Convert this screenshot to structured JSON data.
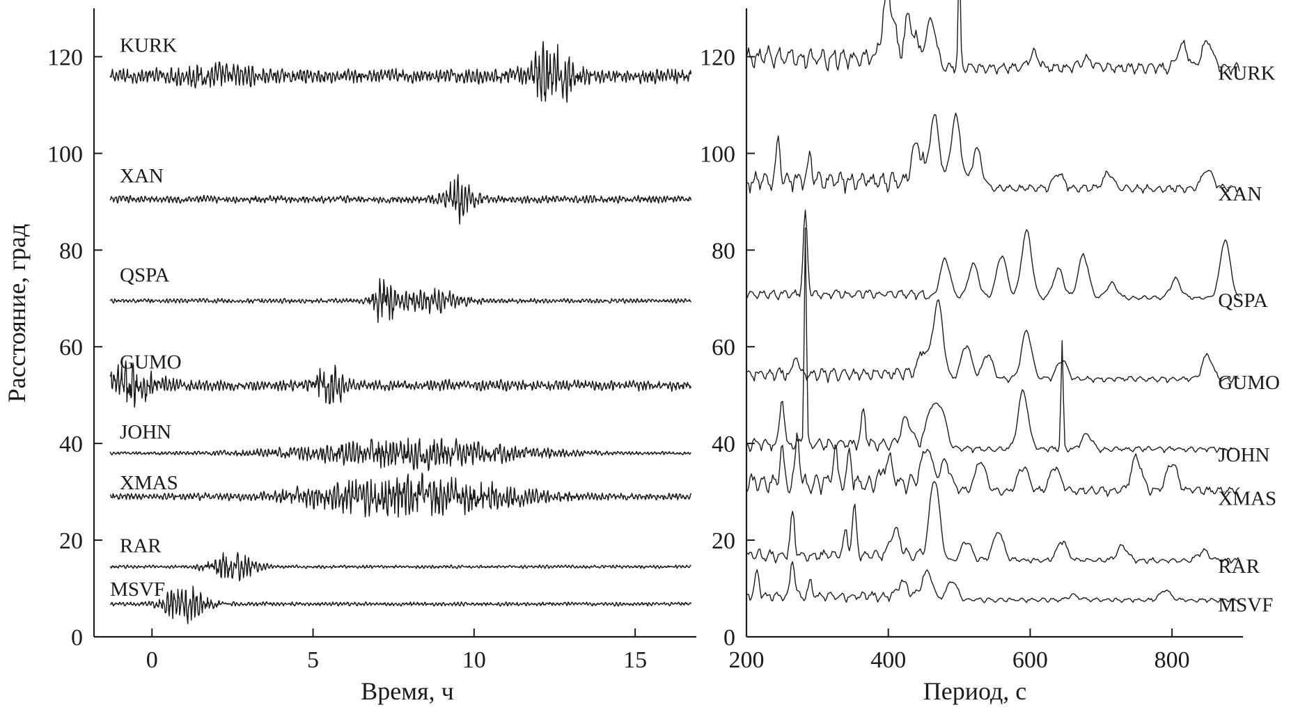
{
  "chart_data": [
    {
      "type": "line",
      "xlabel": "Время, ч",
      "ylabel": "Расстояние, град",
      "xlim": [
        -1.8,
        16.9
      ],
      "ylim": [
        0,
        130
      ],
      "xticks": [
        0,
        5,
        10,
        15
      ],
      "yticks": [
        0,
        20,
        40,
        60,
        80,
        100,
        120
      ],
      "grid": false,
      "series": [
        {
          "name": "KURK",
          "baseline": 116,
          "label_at": [
            -1.0,
            121
          ],
          "x_start": -1.3,
          "noise": 2.2,
          "bursts": [
            {
              "t": 12.4,
              "amp": 8,
              "width": 0.9
            },
            {
              "t": 2.0,
              "amp": 2,
              "width": 1.5
            }
          ]
        },
        {
          "name": "XAN",
          "baseline": 90.5,
          "label_at": [
            -1.0,
            94
          ],
          "x_start": -1.3,
          "noise": 1.1,
          "bursts": [
            {
              "t": 9.5,
              "amp": 5.5,
              "width": 0.6
            }
          ]
        },
        {
          "name": "QSPA",
          "baseline": 69.5,
          "label_at": [
            -1.0,
            73.5
          ],
          "x_start": -1.3,
          "noise": 0.7,
          "bursts": [
            {
              "t": 7.2,
              "amp": 7,
              "width": 0.4
            },
            {
              "t": 8.5,
              "amp": 3.5,
              "width": 1.4
            }
          ]
        },
        {
          "name": "GUMO",
          "baseline": 52,
          "label_at": [
            -1.0,
            55.5
          ],
          "x_start": -1.3,
          "noise": 1.6,
          "bursts": [
            {
              "t": -0.8,
              "amp": 6,
              "width": 1.2
            },
            {
              "t": 5.5,
              "amp": 6,
              "width": 0.6
            }
          ]
        },
        {
          "name": "JOHN",
          "baseline": 38,
          "label_at": [
            -1.0,
            41
          ],
          "x_start": -1.3,
          "noise": 0.5,
          "bursts": [
            {
              "t": 8.0,
              "amp": 4.5,
              "width": 4.5
            }
          ]
        },
        {
          "name": "XMAS",
          "baseline": 29,
          "label_at": [
            -1.0,
            30.5
          ],
          "x_start": -1.3,
          "noise": 1.0,
          "bursts": [
            {
              "t": 8.0,
              "amp": 6,
              "width": 4.0
            }
          ]
        },
        {
          "name": "RAR",
          "baseline": 14.5,
          "label_at": [
            -1.0,
            17.5
          ],
          "x_start": -1.3,
          "noise": 0.5,
          "bursts": [
            {
              "t": 2.5,
              "amp": 4.5,
              "width": 0.9
            }
          ]
        },
        {
          "name": "MSVF",
          "baseline": 6.8,
          "label_at": [
            -1.3,
            8.5
          ],
          "x_start": -1.3,
          "noise": 0.6,
          "bursts": [
            {
              "t": 1.0,
              "amp": 6,
              "width": 0.8
            }
          ]
        }
      ]
    },
    {
      "type": "line",
      "xlabel": "Период, с",
      "ylabel": "",
      "xlim": [
        200,
        900
      ],
      "ylim": [
        0,
        130
      ],
      "xticks": [
        200,
        400,
        600,
        800
      ],
      "yticks": [
        0,
        20,
        40,
        60,
        80,
        100,
        120
      ],
      "grid": false,
      "series": [
        {
          "name": "KURK",
          "baseline": 116,
          "label_at": [
            865,
            117
          ],
          "peaks": [
            [
              400,
              14
            ],
            [
              430,
              8
            ],
            [
              460,
              10
            ],
            [
              500,
              22
            ],
            [
              605,
              3
            ],
            [
              680,
              2
            ],
            [
              815,
              5
            ],
            [
              850,
              6
            ]
          ],
          "ripple": 4
        },
        {
          "name": "XAN",
          "baseline": 91.5,
          "label_at": [
            865,
            92
          ],
          "peaks": [
            [
              245,
              9
            ],
            [
              290,
              5
            ],
            [
              440,
              8
            ],
            [
              465,
              15
            ],
            [
              495,
              15
            ],
            [
              525,
              8
            ],
            [
              640,
              3
            ],
            [
              710,
              3
            ],
            [
              850,
              4
            ]
          ],
          "ripple": 3
        },
        {
          "name": "QSPA",
          "baseline": 69.5,
          "label_at": [
            865,
            70
          ],
          "peaks": [
            [
              283,
              17
            ],
            [
              480,
              8
            ],
            [
              520,
              7
            ],
            [
              560,
              9
            ],
            [
              595,
              14
            ],
            [
              640,
              6
            ],
            [
              675,
              9
            ],
            [
              715,
              3
            ],
            [
              805,
              4
            ],
            [
              875,
              12
            ]
          ],
          "ripple": 1.5
        },
        {
          "name": "GUMO",
          "baseline": 52.5,
          "label_at": [
            865,
            53
          ],
          "peaks": [
            [
              270,
              5
            ],
            [
              450,
              5
            ],
            [
              470,
              16
            ],
            [
              510,
              7
            ],
            [
              540,
              5
            ],
            [
              595,
              10
            ],
            [
              645,
              4
            ],
            [
              850,
              5
            ]
          ],
          "ripple": 2
        },
        {
          "name": "JOHN",
          "baseline": 38,
          "label_at": [
            865,
            38
          ],
          "peaks": [
            [
              250,
              10
            ],
            [
              283,
              45
            ],
            [
              365,
              7
            ],
            [
              425,
              5
            ],
            [
              460,
              8
            ],
            [
              475,
              8
            ],
            [
              590,
              12
            ],
            [
              645,
              22
            ],
            [
              680,
              3
            ]
          ],
          "ripple": 2
        },
        {
          "name": "XMAS",
          "baseline": 29,
          "label_at": [
            865,
            29
          ],
          "peaks": [
            [
              250,
              7
            ],
            [
              272,
              10
            ],
            [
              325,
              7
            ],
            [
              345,
              6
            ],
            [
              400,
              5
            ],
            [
              455,
              9
            ],
            [
              480,
              6
            ],
            [
              530,
              6
            ],
            [
              590,
              5
            ],
            [
              635,
              5
            ],
            [
              750,
              7
            ],
            [
              800,
              6
            ]
          ],
          "ripple": 3
        },
        {
          "name": "RAR",
          "baseline": 15,
          "label_at": [
            865,
            15
          ],
          "peaks": [
            [
              265,
              9
            ],
            [
              340,
              5
            ],
            [
              352,
              10
            ],
            [
              410,
              5
            ],
            [
              465,
              17
            ],
            [
              510,
              4
            ],
            [
              555,
              6
            ],
            [
              645,
              4
            ],
            [
              730,
              3
            ],
            [
              845,
              2
            ]
          ],
          "ripple": 2
        },
        {
          "name": "MSVF",
          "baseline": 7,
          "label_at": [
            865,
            7
          ],
          "peaks": [
            [
              215,
              5
            ],
            [
              265,
              8
            ],
            [
              290,
              3
            ],
            [
              420,
              3
            ],
            [
              455,
              6
            ],
            [
              490,
              4
            ],
            [
              660,
              1
            ],
            [
              790,
              2
            ]
          ],
          "ripple": 1.5
        }
      ]
    }
  ]
}
